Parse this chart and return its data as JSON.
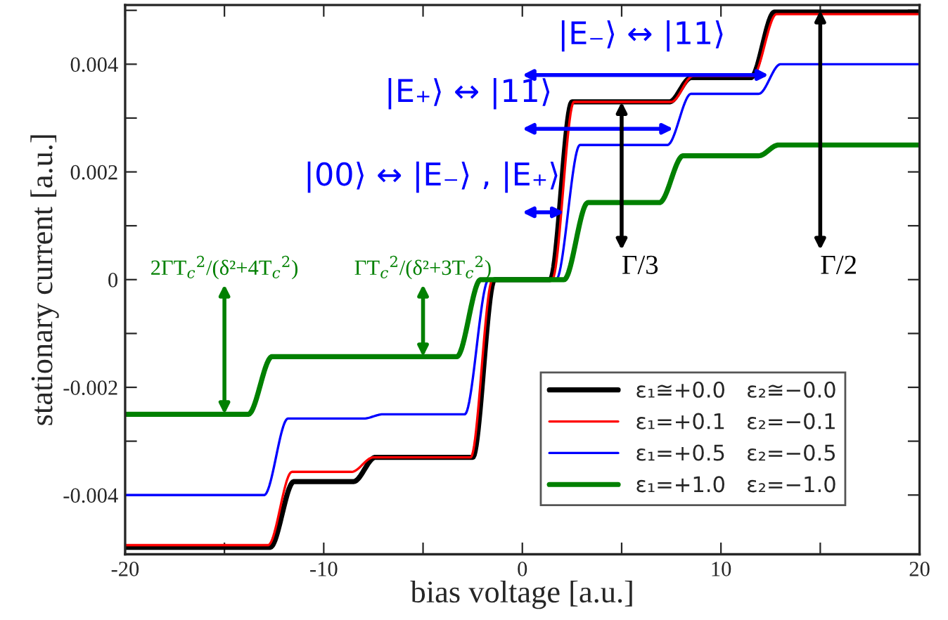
{
  "chart_data": {
    "type": "line",
    "xlabel": "bias voltage [a.u.]",
    "ylabel": "stationary current [a.u.]",
    "xlim": [
      -20,
      20
    ],
    "ylim": [
      -0.0051,
      0.0051
    ],
    "xticks": [
      -20,
      {
        "value": -15,
        "label": null
      },
      -10,
      {
        "value": -5,
        "label": null
      },
      0,
      {
        "value": 5,
        "label": null
      },
      10,
      {
        "value": 15,
        "label": null
      },
      20
    ],
    "yticks": [
      {
        "value": -0.004,
        "label": "-0.004"
      },
      {
        "value": -0.003,
        "label": null
      },
      {
        "value": -0.002,
        "label": "-0.002"
      },
      {
        "value": -0.001,
        "label": null
      },
      0,
      {
        "value": 0.001,
        "label": null
      },
      {
        "value": 0.002,
        "label": "0.002"
      },
      {
        "value": 0.003,
        "label": null
      },
      {
        "value": 0.004,
        "label": "0.004"
      },
      {
        "value": 0.005,
        "label": null
      }
    ],
    "grid": false,
    "legend": "bottom right",
    "line_style": "solid",
    "series": [
      {
        "name": "ε₁≅+0.0   ε₂≅−0.0",
        "color": "#000000",
        "x": [
          -20,
          -12.7,
          -11.5,
          -8.5,
          -7.4,
          -2.5,
          -1.4,
          1.4,
          2.5,
          7.4,
          8.5,
          11.5,
          12.7,
          20
        ],
        "values": [
          -0.00497,
          -0.00497,
          -0.00375,
          -0.00375,
          -0.0033,
          -0.0033,
          0,
          0,
          0.0033,
          0.0033,
          0.00375,
          0.00375,
          0.00497,
          0.00497
        ]
      },
      {
        "name": "ε₁=+0.1   ε₂=−0.1",
        "color": "#ff0000",
        "x": [
          -20,
          -12.8,
          -11.6,
          -8.6,
          -7.5,
          -2.6,
          -1.5,
          1.5,
          2.6,
          7.5,
          8.6,
          11.6,
          12.8,
          20
        ],
        "values": [
          -0.00493,
          -0.00493,
          -0.00357,
          -0.00357,
          -0.0033,
          -0.0033,
          0,
          0,
          0.0033,
          0.0033,
          0.00378,
          0.00378,
          0.00493,
          0.00493
        ]
      },
      {
        "name": "ε₁=+0.5   ε₂=−0.5",
        "color": "#0000ff",
        "x": [
          -20,
          -13,
          -11.8,
          -8,
          -7,
          -2.9,
          -1.7,
          1.7,
          2.9,
          7.3,
          8.5,
          11.9,
          13,
          20
        ],
        "values": [
          -0.004,
          -0.004,
          -0.00258,
          -0.00258,
          -0.0025,
          -0.0025,
          0,
          0,
          0.0025,
          0.0025,
          0.00345,
          0.00345,
          0.004,
          0.004
        ]
      },
      {
        "name": "ε₁=+1.0   ε₂=−1.0",
        "color": "#008000",
        "x": [
          -20,
          -13.8,
          -12.6,
          -3.3,
          -2.1,
          2.1,
          3.3,
          6.9,
          8.1,
          11.9,
          12.9,
          20
        ],
        "values": [
          -0.0025,
          -0.0025,
          -0.00143,
          -0.00143,
          0,
          0,
          0.00143,
          0.00143,
          0.0023,
          0.0023,
          0.0025,
          0.0025
        ]
      }
    ],
    "annotations": [
      {
        "text": "|E₋⟩ ↔ |11⟩",
        "x": 12.4,
        "y": 0.0038
      },
      {
        "text": "|E₊⟩ ↔ |11⟩",
        "x": 7.6,
        "y": 0.0028
      },
      {
        "text": "|00⟩ ↔ |E₋⟩ , |E₊⟩",
        "x": 2.1,
        "y": 0.00125
      },
      {
        "text": "Γ/3",
        "x": 5,
        "y": 0.0033
      },
      {
        "text": "Γ/2",
        "x": 15,
        "y": 0.005
      },
      {
        "text": "2ΓT$_{c}$$^{2}$/(δ²+4T$_{c}$$^{2}$)",
        "x": -15,
        "y": -0.0025
      },
      {
        "text": "ΓT$_{c}$$^{2}$/(δ²+3T$_{c}$$^{2}$)",
        "x": -5,
        "y": -0.00143
      }
    ]
  }
}
